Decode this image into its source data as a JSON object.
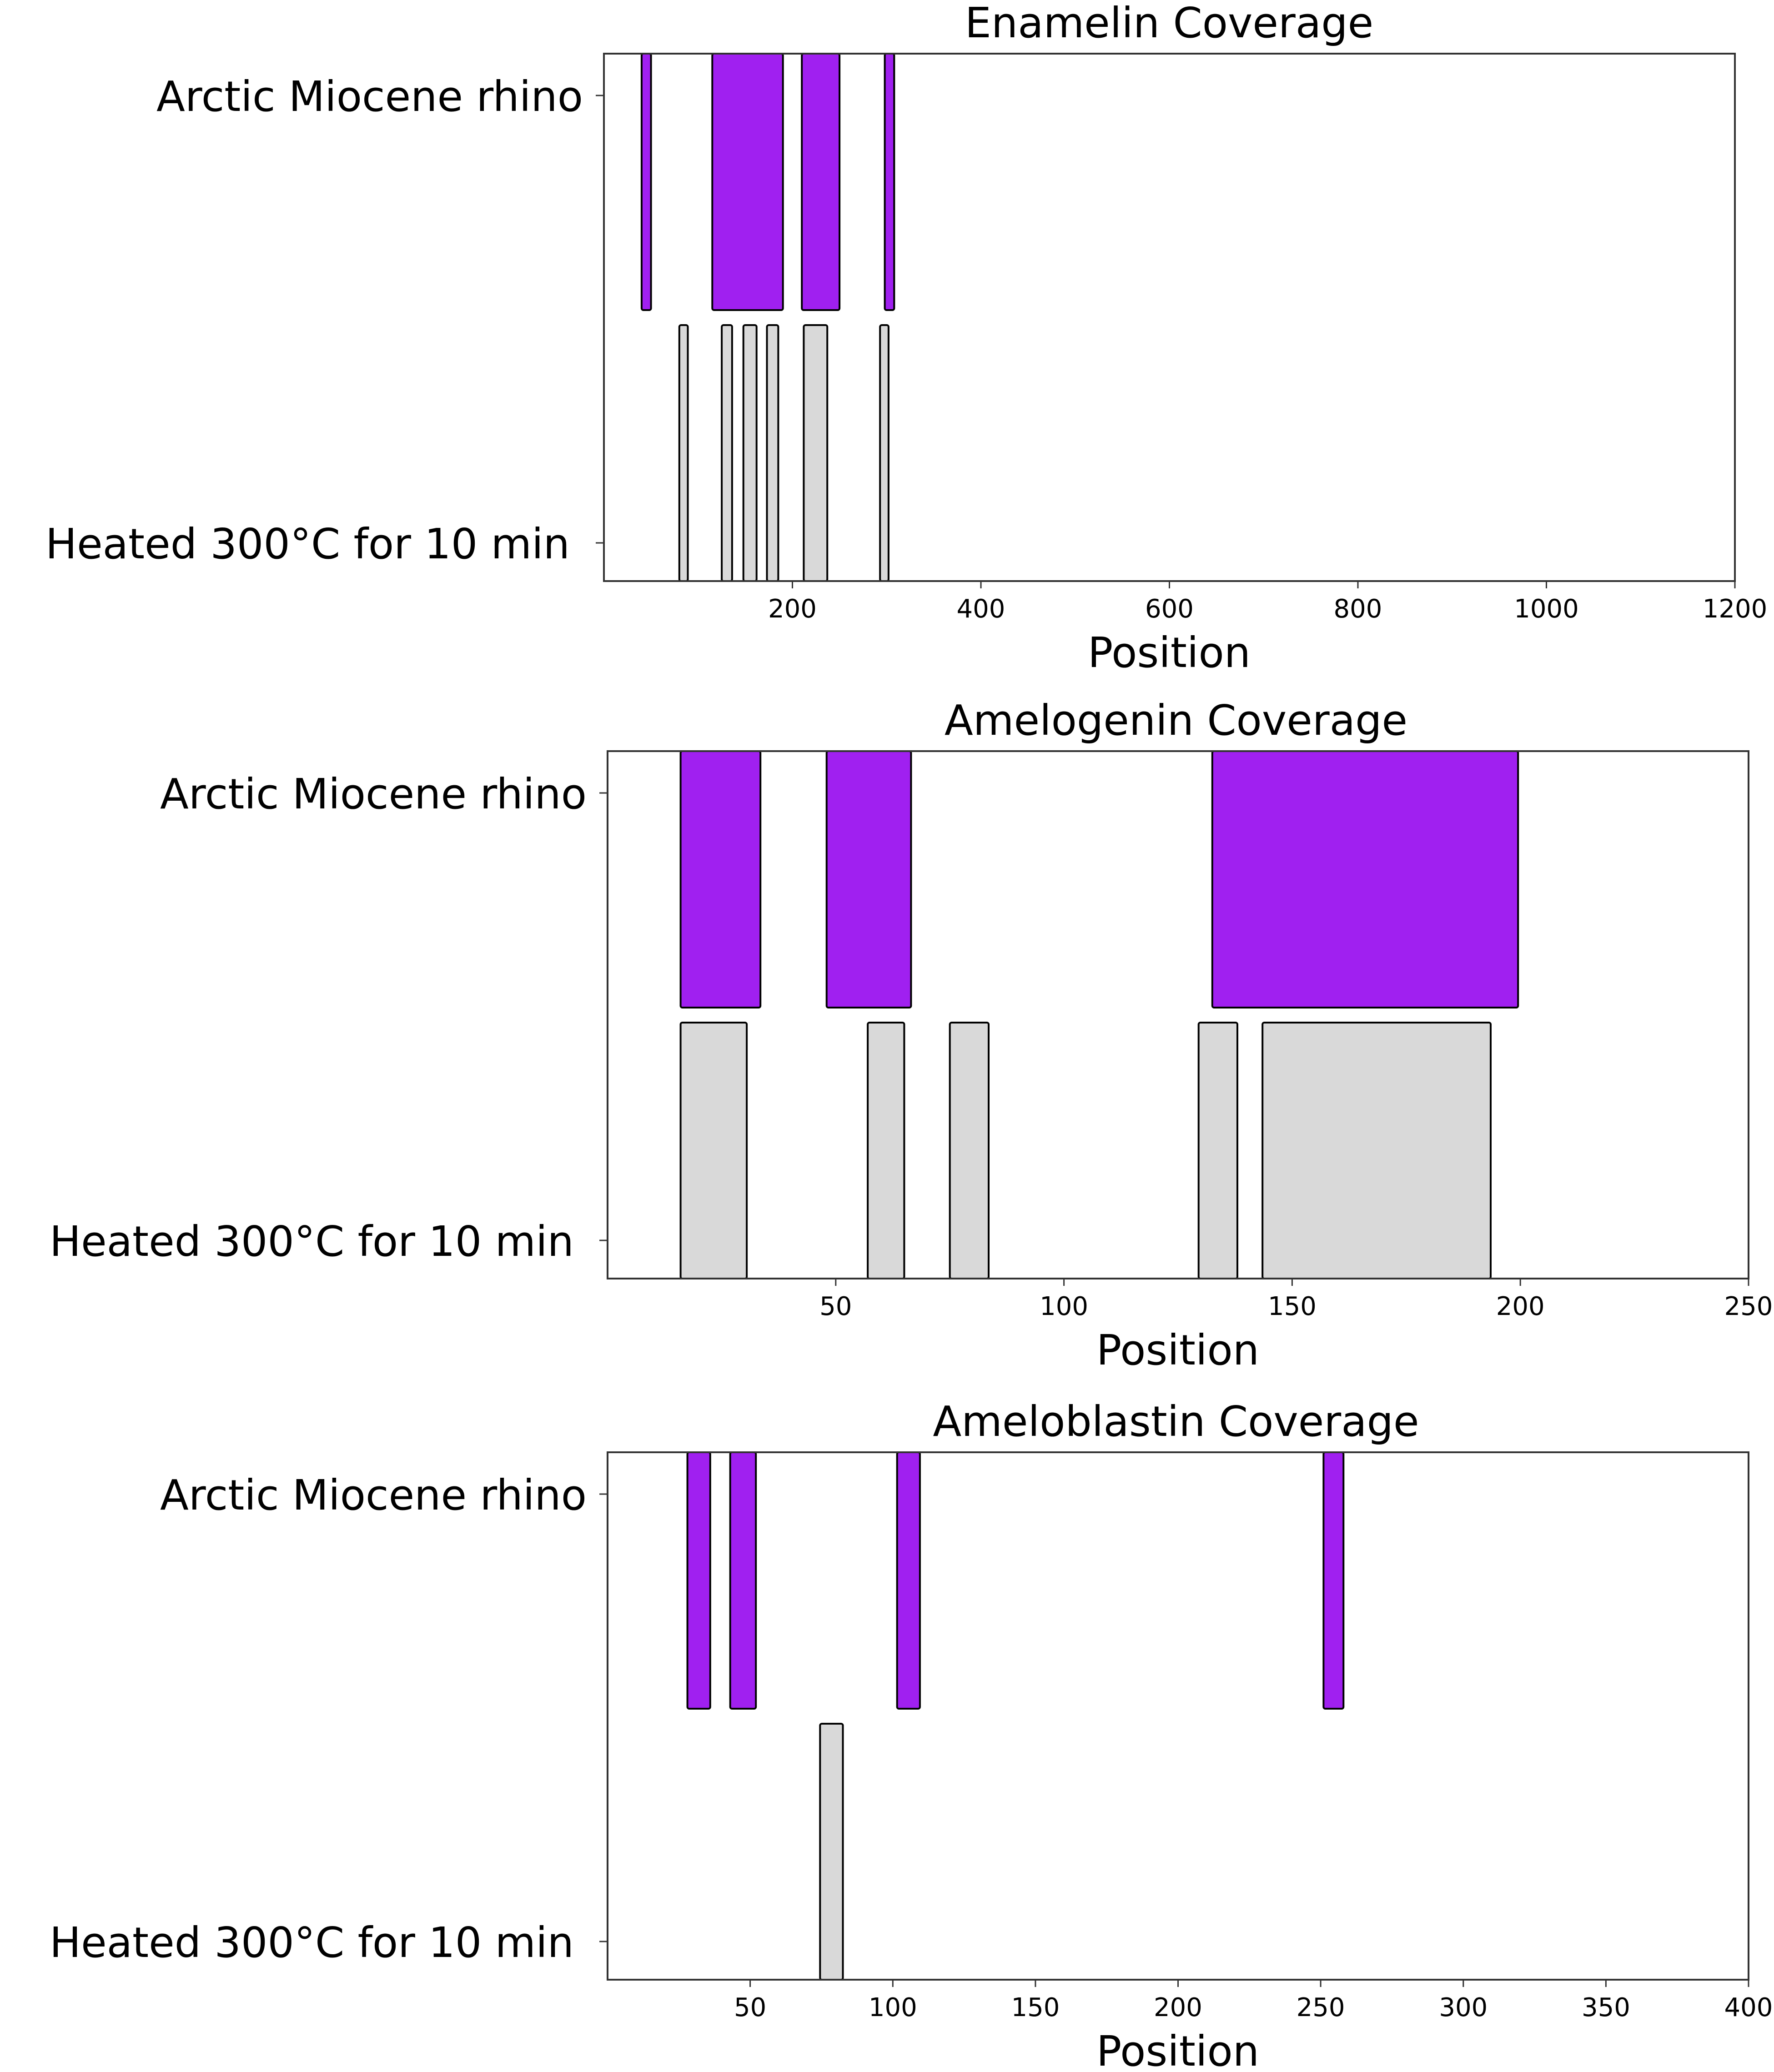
{
  "colors": {
    "arctic": "#a020f0",
    "heated": "#d9d9d9",
    "edge": "#000000",
    "axes": "#333333",
    "background": "#ffffff"
  },
  "chart_data": [
    {
      "type": "bar",
      "subtype": "coverage-ranges",
      "title": "Enamelin Coverage",
      "xlabel": "Position",
      "ylabel": "",
      "xlim": [
        0,
        1200
      ],
      "xticks": [
        200,
        400,
        600,
        800,
        1000,
        1200
      ],
      "rows": [
        "Arctic Miocene rhino",
        "Heated 300°C for 10 min"
      ],
      "grid": false,
      "series": [
        {
          "name": "Arctic Miocene rhino",
          "color_key": "arctic",
          "ranges": [
            [
              40,
              50
            ],
            [
              115,
              190
            ],
            [
              210,
              250
            ],
            [
              298,
              308
            ]
          ]
        },
        {
          "name": "Heated 300°C for 10 min",
          "color_key": "heated",
          "ranges": [
            [
              80,
              89
            ],
            [
              125,
              136
            ],
            [
              148,
              162
            ],
            [
              173,
              185
            ],
            [
              212,
              237
            ],
            [
              293,
              302
            ]
          ]
        }
      ]
    },
    {
      "type": "bar",
      "subtype": "coverage-ranges",
      "title": "Amelogenin Coverage",
      "xlabel": "Position",
      "ylabel": "",
      "xlim": [
        0,
        250
      ],
      "xticks": [
        50,
        100,
        150,
        200,
        250
      ],
      "rows": [
        "Arctic Miocene rhino",
        "Heated 300°C for 10 min"
      ],
      "grid": false,
      "series": [
        {
          "name": "Arctic Miocene rhino",
          "color_key": "arctic",
          "ranges": [
            [
              16,
              33.5
            ],
            [
              48,
              66.5
            ],
            [
              132.5,
              199.5
            ]
          ]
        },
        {
          "name": "Heated 300°C for 10 min",
          "color_key": "heated",
          "ranges": [
            [
              16,
              30.5
            ],
            [
              57,
              65
            ],
            [
              75,
              83.5
            ],
            [
              129.5,
              138
            ],
            [
              143.5,
              193.5
            ]
          ]
        }
      ]
    },
    {
      "type": "bar",
      "subtype": "coverage-ranges",
      "title": "Ameloblastin Coverage",
      "xlabel": "Position",
      "ylabel": "",
      "xlim": [
        0,
        400
      ],
      "xticks": [
        50,
        100,
        150,
        200,
        250,
        300,
        350,
        400
      ],
      "rows": [
        "Arctic Miocene rhino",
        "Heated 300°C for 10 min"
      ],
      "grid": false,
      "series": [
        {
          "name": "Arctic Miocene rhino",
          "color_key": "arctic",
          "ranges": [
            [
              28,
              36
            ],
            [
              43,
              52
            ],
            [
              101.5,
              109.5
            ],
            [
              251,
              258
            ]
          ]
        },
        {
          "name": "Heated 300°C for 10 min",
          "color_key": "heated",
          "ranges": [
            [
              74.5,
              82.5
            ]
          ]
        }
      ]
    }
  ]
}
